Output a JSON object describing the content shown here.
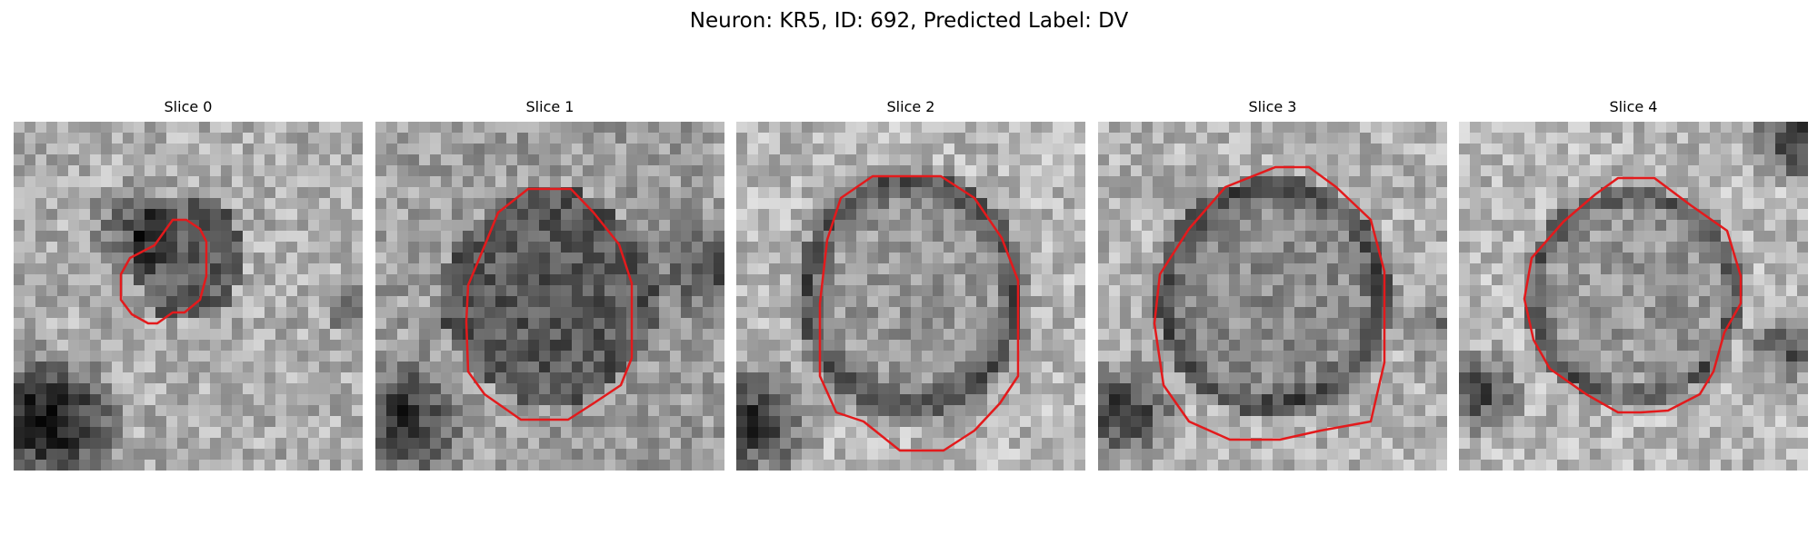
{
  "figure": {
    "title": "Neuron: KR5, ID: 692, Predicted Label: DV"
  },
  "colors": {
    "contour": "#e31a1c",
    "background": "#ffffff"
  },
  "panels": [
    {
      "title": "Slice 0"
    },
    {
      "title": "Slice 1"
    },
    {
      "title": "Slice 2"
    },
    {
      "title": "Slice 3"
    },
    {
      "title": "Slice 4"
    }
  ]
}
